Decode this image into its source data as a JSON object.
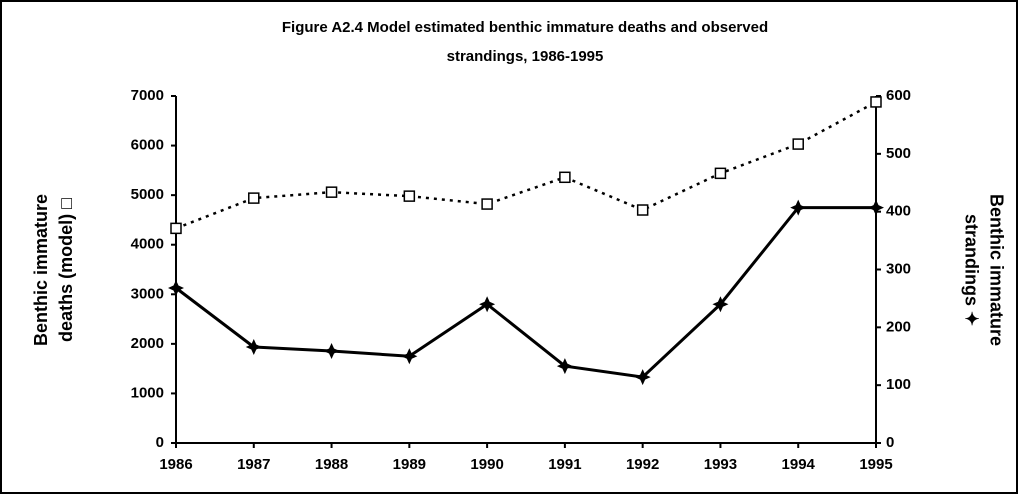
{
  "chart_data": {
    "type": "line",
    "title_lines": [
      "Figure A2.4  Model estimated benthic immature deaths and observed",
      "strandings, 1986-1995"
    ],
    "y_label_lines": [
      "Benthic immature",
      "deaths (model) □"
    ],
    "y2_label_lines": [
      "Benthic immature",
      "strandings ✦"
    ],
    "categories": [
      "1986",
      "1987",
      "1988",
      "1989",
      "1990",
      "1991",
      "1992",
      "1993",
      "1994",
      "1995"
    ],
    "series": [
      {
        "name": "Benthic immature deaths (model)",
        "color": "#000000",
        "marker": "square",
        "dash": "dotted",
        "values": [
          4330,
          4940,
          5060,
          4980,
          4820,
          5360,
          4700,
          5440,
          6030,
          6880
        ]
      },
      {
        "name": "Benthic immature strandings",
        "color": "#000000",
        "marker": "star",
        "dash": "solid",
        "axis": "y2",
        "values": [
          268,
          166,
          159,
          150,
          240,
          133,
          114,
          240,
          407,
          407
        ]
      }
    ],
    "ylim": [
      0,
      7000
    ],
    "yticks": [
      0,
      1000,
      2000,
      3000,
      4000,
      5000,
      6000,
      7000
    ],
    "y2lim": [
      0,
      600
    ],
    "y2ticks": [
      0,
      100,
      200,
      300,
      400,
      500,
      600
    ]
  }
}
